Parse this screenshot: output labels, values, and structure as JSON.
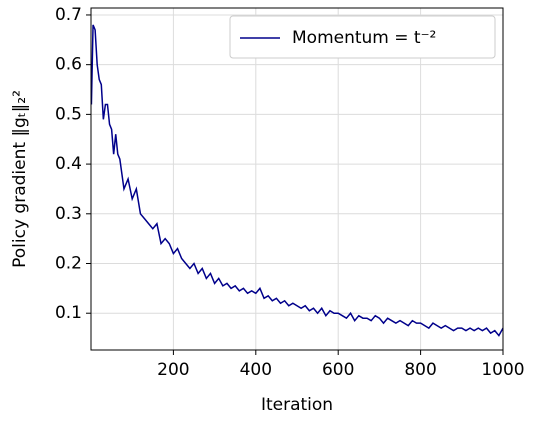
{
  "chart_data": {
    "type": "line",
    "xlabel": "Iteration",
    "ylabel": "Policy gradient ‖gₜ‖₂²",
    "x": [
      1,
      5,
      10,
      15,
      20,
      25,
      30,
      35,
      40,
      45,
      50,
      55,
      60,
      65,
      70,
      75,
      80,
      90,
      100,
      110,
      120,
      130,
      140,
      150,
      160,
      170,
      180,
      190,
      200,
      210,
      220,
      230,
      240,
      250,
      260,
      270,
      280,
      290,
      300,
      310,
      320,
      330,
      340,
      350,
      360,
      370,
      380,
      390,
      400,
      410,
      420,
      430,
      440,
      450,
      460,
      470,
      480,
      490,
      500,
      510,
      520,
      530,
      540,
      550,
      560,
      570,
      580,
      590,
      600,
      610,
      620,
      630,
      640,
      650,
      660,
      670,
      680,
      690,
      700,
      710,
      720,
      730,
      740,
      750,
      760,
      770,
      780,
      790,
      800,
      810,
      820,
      830,
      840,
      850,
      860,
      870,
      880,
      890,
      900,
      910,
      920,
      930,
      940,
      950,
      960,
      970,
      980,
      990,
      1000
    ],
    "series": [
      {
        "name": "Momentum = t⁻²",
        "color": "#00008b",
        "values": [
          0.52,
          0.68,
          0.67,
          0.6,
          0.57,
          0.56,
          0.49,
          0.52,
          0.52,
          0.48,
          0.47,
          0.42,
          0.46,
          0.42,
          0.41,
          0.38,
          0.35,
          0.37,
          0.33,
          0.35,
          0.3,
          0.29,
          0.28,
          0.27,
          0.28,
          0.24,
          0.25,
          0.24,
          0.22,
          0.23,
          0.21,
          0.2,
          0.19,
          0.2,
          0.18,
          0.19,
          0.17,
          0.18,
          0.16,
          0.17,
          0.155,
          0.16,
          0.15,
          0.155,
          0.145,
          0.15,
          0.14,
          0.145,
          0.14,
          0.15,
          0.13,
          0.135,
          0.125,
          0.13,
          0.12,
          0.125,
          0.115,
          0.12,
          0.115,
          0.11,
          0.115,
          0.105,
          0.11,
          0.1,
          0.11,
          0.095,
          0.105,
          0.1,
          0.1,
          0.095,
          0.09,
          0.1,
          0.085,
          0.095,
          0.09,
          0.09,
          0.085,
          0.095,
          0.09,
          0.08,
          0.09,
          0.085,
          0.08,
          0.085,
          0.08,
          0.075,
          0.085,
          0.08,
          0.08,
          0.075,
          0.07,
          0.08,
          0.075,
          0.07,
          0.075,
          0.07,
          0.065,
          0.07,
          0.07,
          0.065,
          0.07,
          0.065,
          0.07,
          0.065,
          0.07,
          0.06,
          0.065,
          0.055,
          0.07
        ]
      }
    ],
    "xlim": [
      0,
      1000
    ],
    "ylim": [
      0.026,
      0.714
    ],
    "xticks": [
      200,
      400,
      600,
      800,
      1000
    ],
    "yticks": [
      0.1,
      0.2,
      0.3,
      0.4,
      0.5,
      0.6,
      0.7
    ],
    "grid": true,
    "legend": "upper right"
  }
}
